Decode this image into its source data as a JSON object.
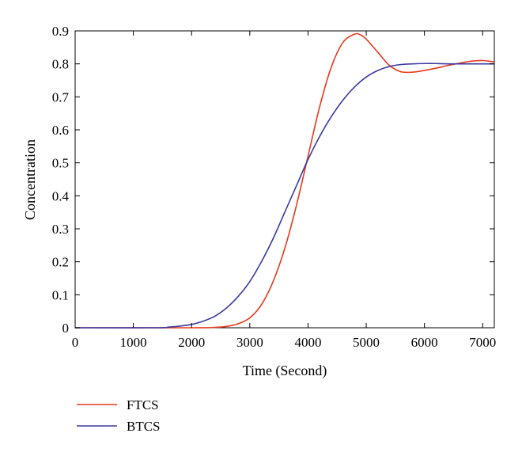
{
  "chart_data": {
    "type": "line",
    "title": "",
    "xlabel": "Time (Second)",
    "ylabel": "Concentration",
    "xlim": [
      0,
      7200
    ],
    "ylim": [
      0,
      0.9
    ],
    "xticks": [
      "0",
      "1000",
      "2000",
      "3000",
      "4000",
      "5000",
      "6000",
      "7000"
    ],
    "yticks": [
      "0",
      "0.1",
      "0.2",
      "0.3",
      "0.4",
      "0.5",
      "0.6",
      "0.7",
      "0.8",
      "0.9"
    ],
    "grid": false,
    "legend_position": "bottom-left, below plot",
    "series": [
      {
        "name": "FTCS",
        "color": "#e8391f",
        "x": [
          0,
          2000,
          2400,
          2600,
          2800,
          3000,
          3200,
          3400,
          3600,
          3800,
          4000,
          4200,
          4400,
          4600,
          4800,
          4900,
          5000,
          5200,
          5400,
          5600,
          5800,
          6000,
          6200,
          6400,
          6600,
          6800,
          7000,
          7200
        ],
        "y": [
          0,
          0,
          0.001,
          0.004,
          0.012,
          0.03,
          0.07,
          0.14,
          0.24,
          0.37,
          0.52,
          0.67,
          0.79,
          0.865,
          0.89,
          0.888,
          0.875,
          0.835,
          0.795,
          0.776,
          0.775,
          0.78,
          0.787,
          0.795,
          0.802,
          0.808,
          0.81,
          0.806
        ]
      },
      {
        "name": "BTCS",
        "color": "#3a3aa0",
        "x": [
          0,
          1400,
          1600,
          1800,
          2000,
          2200,
          2400,
          2600,
          2800,
          3000,
          3200,
          3400,
          3600,
          3800,
          4000,
          4200,
          4400,
          4600,
          4800,
          5000,
          5200,
          5400,
          5600,
          5800,
          6000,
          6200,
          6400,
          6800,
          7200
        ],
        "y": [
          0,
          0,
          0.002,
          0.005,
          0.01,
          0.02,
          0.035,
          0.06,
          0.095,
          0.14,
          0.2,
          0.27,
          0.35,
          0.43,
          0.51,
          0.58,
          0.64,
          0.69,
          0.73,
          0.76,
          0.78,
          0.792,
          0.798,
          0.8,
          0.801,
          0.801,
          0.8,
          0.8,
          0.8
        ]
      }
    ]
  }
}
